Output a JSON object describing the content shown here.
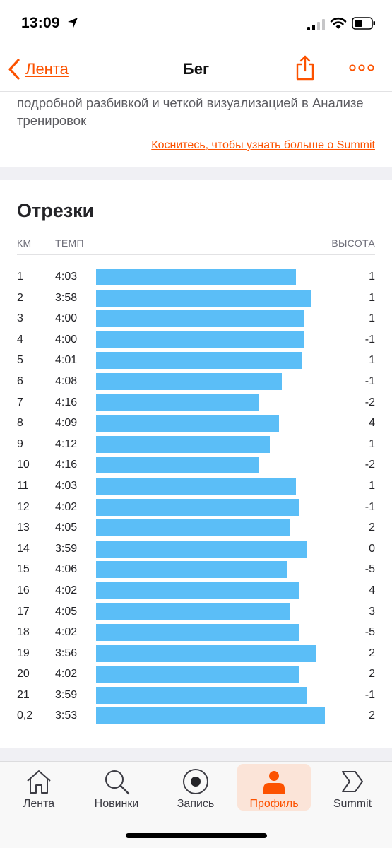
{
  "status_bar": {
    "time": "13:09"
  },
  "nav": {
    "back_label": "Лента",
    "title": "Бег"
  },
  "promo": {
    "text": "подробной разбивкой и четкой визуализацией в Анализе тренировок",
    "link": "Коснитесь, чтобы узнать больше о Summit"
  },
  "splits": {
    "title": "Отрезки",
    "headers": {
      "km": "КМ",
      "pace": "ТЕМП",
      "elevation": "ВЫСОТА"
    },
    "rows": [
      {
        "km": "1",
        "pace": "4:03",
        "elevation": "1"
      },
      {
        "km": "2",
        "pace": "3:58",
        "elevation": "1"
      },
      {
        "km": "3",
        "pace": "4:00",
        "elevation": "1"
      },
      {
        "km": "4",
        "pace": "4:00",
        "elevation": "-1"
      },
      {
        "km": "5",
        "pace": "4:01",
        "elevation": "1"
      },
      {
        "km": "6",
        "pace": "4:08",
        "elevation": "-1"
      },
      {
        "km": "7",
        "pace": "4:16",
        "elevation": "-2"
      },
      {
        "km": "8",
        "pace": "4:09",
        "elevation": "4"
      },
      {
        "km": "9",
        "pace": "4:12",
        "elevation": "1"
      },
      {
        "km": "10",
        "pace": "4:16",
        "elevation": "-2"
      },
      {
        "km": "11",
        "pace": "4:03",
        "elevation": "1"
      },
      {
        "km": "12",
        "pace": "4:02",
        "elevation": "-1"
      },
      {
        "km": "13",
        "pace": "4:05",
        "elevation": "2"
      },
      {
        "km": "14",
        "pace": "3:59",
        "elevation": "0"
      },
      {
        "km": "15",
        "pace": "4:06",
        "elevation": "-5"
      },
      {
        "km": "16",
        "pace": "4:02",
        "elevation": "4"
      },
      {
        "km": "17",
        "pace": "4:05",
        "elevation": "3"
      },
      {
        "km": "18",
        "pace": "4:02",
        "elevation": "-5"
      },
      {
        "km": "19",
        "pace": "3:56",
        "elevation": "2"
      },
      {
        "km": "20",
        "pace": "4:02",
        "elevation": "2"
      },
      {
        "km": "21",
        "pace": "3:59",
        "elevation": "-1"
      },
      {
        "km": "0,2",
        "pace": "3:53",
        "elevation": "2"
      }
    ],
    "bar_color": "#5bbef7"
  },
  "tabs": [
    {
      "label": "Лента",
      "icon": "home-icon",
      "active": false
    },
    {
      "label": "Новинки",
      "icon": "search-icon",
      "active": false
    },
    {
      "label": "Запись",
      "icon": "record-icon",
      "active": false
    },
    {
      "label": "Профиль",
      "icon": "profile-icon",
      "active": true
    },
    {
      "label": "Summit",
      "icon": "summit-icon",
      "active": false
    }
  ],
  "colors": {
    "accent": "#fc5200",
    "active_tab_bg": "#fbe4d8"
  }
}
